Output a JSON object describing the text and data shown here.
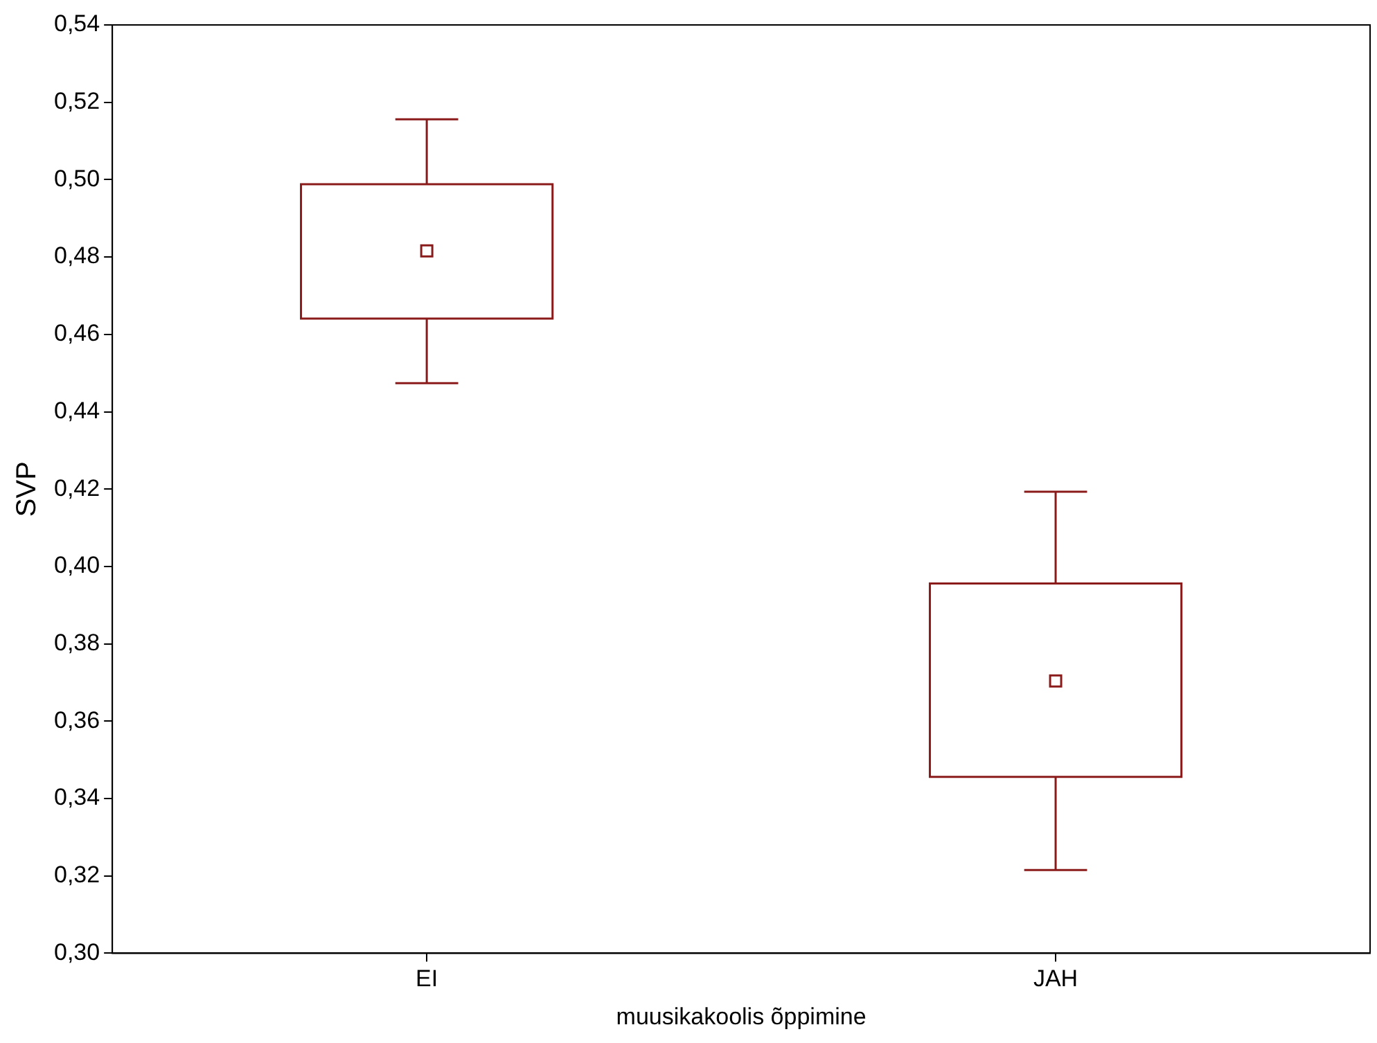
{
  "chart_data": {
    "type": "box",
    "xlabel": "muusikakoolis õppimine",
    "ylabel": "SVP",
    "categories": [
      "EI",
      "JAH"
    ],
    "color": "#8b1a1a",
    "marker": "square",
    "boxes": [
      {
        "low": 0.4474,
        "q1": 0.4641,
        "median": 0.4816,
        "q3": 0.4988,
        "high": 0.5156
      },
      {
        "low": 0.3215,
        "q1": 0.3456,
        "median": 0.3704,
        "q3": 0.3956,
        "high": 0.4193
      }
    ],
    "ylim": [
      0.3,
      0.54
    ],
    "yticks": [
      {
        "value": 0.3,
        "label": "0,30"
      },
      {
        "value": 0.32,
        "label": "0,32"
      },
      {
        "value": 0.34,
        "label": "0,34"
      },
      {
        "value": 0.36,
        "label": "0,36"
      },
      {
        "value": 0.38,
        "label": "0,38"
      },
      {
        "value": 0.4,
        "label": "0,40"
      },
      {
        "value": 0.42,
        "label": "0,42"
      },
      {
        "value": 0.44,
        "label": "0,44"
      },
      {
        "value": 0.46,
        "label": "0,46"
      },
      {
        "value": 0.48,
        "label": "0,48"
      },
      {
        "value": 0.5,
        "label": "0,50"
      },
      {
        "value": 0.52,
        "label": "0,52"
      },
      {
        "value": 0.54,
        "label": "0,54"
      }
    ]
  }
}
